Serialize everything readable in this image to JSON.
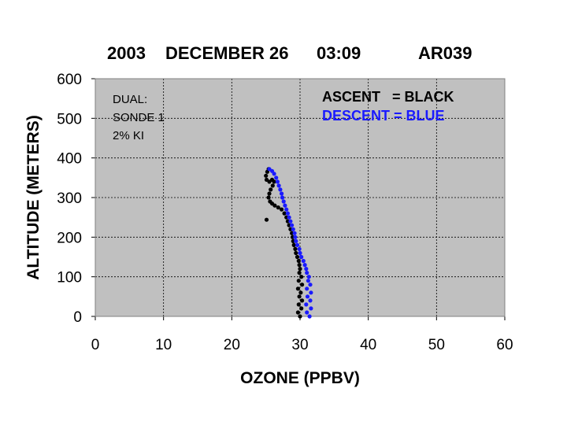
{
  "chart_data": {
    "type": "scatter",
    "title_parts": [
      "2003",
      "DECEMBER 26",
      "03:09",
      "AR039"
    ],
    "xlabel": "OZONE (PPBV)",
    "ylabel": "ALTITUDE (METERS)",
    "xlim": [
      0,
      60
    ],
    "ylim": [
      0,
      600
    ],
    "x_ticks": [
      "0",
      "10",
      "20",
      "30",
      "40",
      "50",
      "60"
    ],
    "y_ticks": [
      "0",
      "100",
      "200",
      "300",
      "400",
      "500",
      "600"
    ],
    "grid": true,
    "background": "#c0c0c0",
    "annotation_lines": [
      "DUAL:",
      "SONDE 1",
      "2% KI"
    ],
    "legend_lines": [
      {
        "text": "ASCENT   = BLACK",
        "color": "#000000"
      },
      {
        "text": "DESCENT = BLUE",
        "color": "#1a1aff"
      }
    ],
    "legend_placement": "top-right",
    "series": [
      {
        "name": "ASCENT",
        "color": "#000000",
        "points": [
          [
            30.0,
            0
          ],
          [
            29.7,
            10
          ],
          [
            30.2,
            20
          ],
          [
            29.8,
            30
          ],
          [
            30.3,
            40
          ],
          [
            29.9,
            50
          ],
          [
            30.1,
            60
          ],
          [
            29.7,
            70
          ],
          [
            30.3,
            80
          ],
          [
            29.8,
            90
          ],
          [
            30.2,
            100
          ],
          [
            29.9,
            110
          ],
          [
            30.0,
            120
          ],
          [
            29.9,
            130
          ],
          [
            29.8,
            140
          ],
          [
            29.6,
            150
          ],
          [
            29.4,
            160
          ],
          [
            29.3,
            170
          ],
          [
            29.1,
            180
          ],
          [
            29.0,
            190
          ],
          [
            28.9,
            200
          ],
          [
            28.8,
            210
          ],
          [
            28.6,
            220
          ],
          [
            28.4,
            230
          ],
          [
            28.2,
            240
          ],
          [
            28.0,
            250
          ],
          [
            27.7,
            260
          ],
          [
            27.3,
            270
          ],
          [
            26.8,
            275
          ],
          [
            26.3,
            280
          ],
          [
            25.9,
            285
          ],
          [
            25.6,
            290
          ],
          [
            25.4,
            300
          ],
          [
            25.5,
            310
          ],
          [
            25.7,
            320
          ],
          [
            26.0,
            330
          ],
          [
            26.2,
            340
          ],
          [
            25.9,
            345
          ],
          [
            25.5,
            340
          ],
          [
            25.1,
            345
          ],
          [
            25.0,
            355
          ],
          [
            25.2,
            365
          ],
          [
            25.4,
            372
          ],
          [
            25.1,
            244
          ]
        ]
      },
      {
        "name": "DESCENT",
        "color": "#1a1aff",
        "points": [
          [
            31.4,
            0
          ],
          [
            31.0,
            10
          ],
          [
            31.6,
            20
          ],
          [
            30.9,
            30
          ],
          [
            31.5,
            40
          ],
          [
            31.1,
            50
          ],
          [
            31.6,
            60
          ],
          [
            31.0,
            70
          ],
          [
            31.5,
            80
          ],
          [
            31.2,
            90
          ],
          [
            31.3,
            100
          ],
          [
            31.0,
            110
          ],
          [
            30.9,
            120
          ],
          [
            30.7,
            130
          ],
          [
            30.5,
            140
          ],
          [
            30.2,
            150
          ],
          [
            30.0,
            160
          ],
          [
            29.9,
            170
          ],
          [
            29.6,
            180
          ],
          [
            29.4,
            190
          ],
          [
            29.3,
            200
          ],
          [
            29.2,
            210
          ],
          [
            29.0,
            220
          ],
          [
            28.8,
            230
          ],
          [
            28.6,
            240
          ],
          [
            28.4,
            250
          ],
          [
            28.2,
            260
          ],
          [
            28.0,
            270
          ],
          [
            27.8,
            280
          ],
          [
            27.6,
            290
          ],
          [
            27.4,
            300
          ],
          [
            27.3,
            310
          ],
          [
            27.1,
            320
          ],
          [
            26.9,
            330
          ],
          [
            26.7,
            340
          ],
          [
            26.5,
            350
          ],
          [
            26.2,
            360
          ],
          [
            25.9,
            367
          ],
          [
            25.5,
            372
          ]
        ]
      }
    ]
  }
}
